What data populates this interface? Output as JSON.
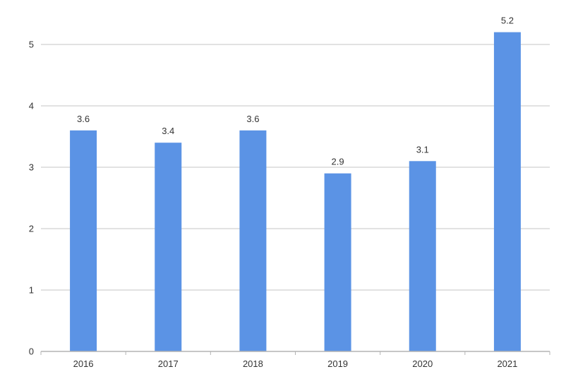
{
  "chart_data": {
    "type": "bar",
    "categories": [
      "2016",
      "2017",
      "2018",
      "2019",
      "2020",
      "2021"
    ],
    "values": [
      3.6,
      3.4,
      3.6,
      2.9,
      3.1,
      5.2
    ],
    "data_labels": [
      "3.6",
      "3.4",
      "3.6",
      "2.9",
      "3.1",
      "5.2"
    ],
    "title": "",
    "xlabel": "",
    "ylabel": "",
    "ylim": [
      0,
      5
    ],
    "yticks": [
      0,
      1,
      2,
      3,
      4,
      5
    ],
    "ytick_labels": [
      "0",
      "1",
      "2",
      "3",
      "4",
      "5"
    ],
    "grid": true,
    "legend": "none",
    "colors": {
      "bar": "#5b93e5",
      "grid": "#d9d9d9",
      "axis": "#b3b3b3",
      "text": "#333333"
    }
  }
}
